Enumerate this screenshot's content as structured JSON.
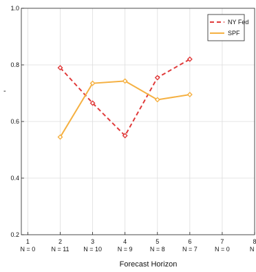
{
  "chart_data": {
    "type": "line",
    "xlabel": "Forecast Horizon",
    "ylabel": "-",
    "x_ticks": [
      {
        "value": 1,
        "label": "1",
        "n_label": "N = 0"
      },
      {
        "value": 2,
        "label": "2",
        "n_label": "N = 11"
      },
      {
        "value": 3,
        "label": "3",
        "n_label": "N = 10"
      },
      {
        "value": 4,
        "label": "4",
        "n_label": "N = 9"
      },
      {
        "value": 5,
        "label": "5",
        "n_label": "N = 8"
      },
      {
        "value": 6,
        "label": "6",
        "n_label": "N = 7"
      },
      {
        "value": 7,
        "label": "7",
        "n_label": "N = 0"
      },
      {
        "value": 8,
        "label": "8",
        "n_label": "N ="
      }
    ],
    "y_ticks": [
      {
        "value": 0.2,
        "label": "0.2"
      },
      {
        "value": 0.4,
        "label": "0.4"
      },
      {
        "value": 0.6,
        "label": "0.6"
      },
      {
        "value": 0.8,
        "label": "0.8"
      },
      {
        "value": 1.0,
        "label": "1.0"
      }
    ],
    "xlim": [
      0.8,
      8.0
    ],
    "ylim": [
      0.2,
      1.0
    ],
    "grid": true,
    "legend_position": "top-right",
    "series": [
      {
        "name": "NY Fed",
        "color": "#e03a3a",
        "dash": "dashed",
        "marker": "diamond",
        "x": [
          2,
          3,
          4,
          5,
          6
        ],
        "y": [
          0.79,
          0.665,
          0.55,
          0.755,
          0.82
        ]
      },
      {
        "name": "SPF",
        "color": "#f5b041",
        "dash": "solid",
        "marker": "diamond",
        "x": [
          2,
          3,
          4,
          5,
          6
        ],
        "y": [
          0.545,
          0.735,
          0.743,
          0.677,
          0.695
        ]
      }
    ]
  }
}
